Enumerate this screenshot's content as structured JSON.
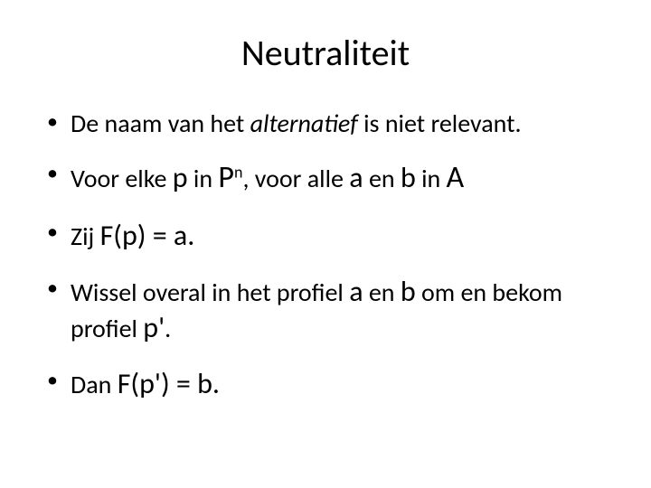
{
  "slide": {
    "title": "Neutraliteit",
    "background_color": "#ffffff",
    "text_color": "#000000",
    "title_fontsize": 40,
    "body_fontsize": 28,
    "mathvar_fontsize": 32,
    "bigvar_fontsize": 34,
    "bullets": {
      "b1": {
        "t1": "De naam van het ",
        "italic": "alternatief",
        "t2": " is niet relevant."
      },
      "b2": {
        "t1": "Voor elke ",
        "p": "p",
        "t2": " in ",
        "P": "P",
        "exp": "n",
        "t3": ",  voor alle ",
        "a": "a",
        "t4": " en ",
        "b": "b",
        "t5": " in ",
        "A": "A"
      },
      "b3": {
        "t1": "Zij ",
        "expr": "F(p) = a."
      },
      "b4": {
        "t1": "Wissel overal in het profiel ",
        "a": "a",
        "t2": " en ",
        "b": "b",
        "t3": " om en bekom profiel ",
        "pprime": "p'",
        "t4": "."
      },
      "b5": {
        "t1": "Dan ",
        "expr": "F(p') = b."
      }
    }
  }
}
